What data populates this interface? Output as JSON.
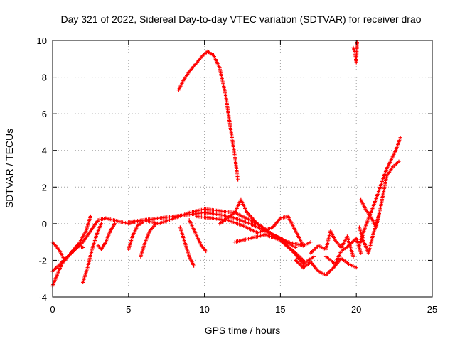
{
  "chart_data": {
    "type": "scatter",
    "title": "Day 321 of 2022, Sidereal Day-to-day VTEC variation (SDTVAR) for receiver drao",
    "xlabel": "GPS time / hours",
    "ylabel": "SDTVAR / TECUs",
    "xlim": [
      0,
      25
    ],
    "ylim": [
      -4,
      10
    ],
    "xticks": [
      "0",
      "5",
      "10",
      "15",
      "20",
      "25"
    ],
    "yticks": [
      "-4",
      "-2",
      "0",
      "2",
      "4",
      "6",
      "8",
      "10"
    ],
    "grid": true,
    "marker": "plus",
    "color": "#ff0000",
    "series": [
      {
        "name": "arc-early-1",
        "x": [
          0.0,
          0.3,
          0.6,
          1.0,
          1.4,
          1.8,
          2.2,
          2.5
        ],
        "y": [
          -3.4,
          -2.8,
          -2.2,
          -1.8,
          -1.4,
          -1.0,
          -0.4,
          0.4
        ]
      },
      {
        "name": "arc-early-2",
        "x": [
          0.0,
          0.4,
          0.8,
          1.2,
          1.6,
          2.0
        ],
        "y": [
          -1.0,
          -1.4,
          -2.0,
          -1.6,
          -1.2,
          -1.3
        ]
      },
      {
        "name": "arc-early-3",
        "x": [
          0.0,
          0.5,
          1.0,
          1.5,
          2.0,
          2.5,
          3.0,
          3.5,
          4.0,
          4.5,
          5.0,
          5.5,
          6.0,
          6.5,
          7.0
        ],
        "y": [
          -2.6,
          -2.2,
          -1.8,
          -1.4,
          -1.0,
          -0.4,
          0.2,
          0.3,
          0.2,
          0.1,
          0.0,
          0.1,
          0.2,
          0.1,
          0.0
        ]
      },
      {
        "name": "arc-dip-2h",
        "x": [
          2.0,
          2.3,
          2.6,
          2.9,
          3.2
        ],
        "y": [
          -3.2,
          -2.4,
          -1.4,
          -0.6,
          0.0
        ]
      },
      {
        "name": "arc-dip-3h",
        "x": [
          3.0,
          3.2,
          3.5,
          3.8,
          4.1
        ],
        "y": [
          -1.2,
          -1.4,
          -1.0,
          -0.4,
          0.0
        ]
      },
      {
        "name": "arc-dip-5h",
        "x": [
          5.0,
          5.3,
          5.6,
          6.0
        ],
        "y": [
          -1.4,
          -0.6,
          -0.1,
          0.1
        ]
      },
      {
        "name": "arc-dip-6h",
        "x": [
          5.8,
          6.1,
          6.4,
          6.8
        ],
        "y": [
          -1.8,
          -1.0,
          -0.4,
          0.0
        ]
      },
      {
        "name": "arc-dip-8h",
        "x": [
          8.4,
          8.7,
          9.0,
          9.3
        ],
        "y": [
          -0.2,
          -1.0,
          -1.8,
          -2.3
        ]
      },
      {
        "name": "arc-dip-9h",
        "x": [
          9.0,
          9.4,
          9.8,
          10.1
        ],
        "y": [
          0.2,
          -0.5,
          -1.2,
          -1.5
        ]
      },
      {
        "name": "arc-mid-1",
        "x": [
          5.0,
          6.0,
          7.0,
          8.0,
          9.0,
          10.0,
          11.0,
          12.0,
          13.0,
          14.0,
          15.0,
          16.0
        ],
        "y": [
          0.1,
          0.2,
          0.3,
          0.4,
          0.5,
          0.6,
          0.5,
          0.3,
          0.0,
          -0.4,
          -0.8,
          -1.3
        ]
      },
      {
        "name": "arc-mid-2",
        "x": [
          7.0,
          8.0,
          9.0,
          10.0,
          11.0,
          12.0,
          13.0,
          14.0,
          15.0,
          16.0,
          16.5
        ],
        "y": [
          0.0,
          0.3,
          0.6,
          0.8,
          0.7,
          0.6,
          0.2,
          -0.3,
          -0.9,
          -1.6,
          -2.0
        ]
      },
      {
        "name": "arc-mid-3",
        "x": [
          9.5,
          10.5,
          11.5,
          12.5,
          13.5,
          14.5,
          15.0,
          15.5,
          16.0,
          16.5
        ],
        "y": [
          0.4,
          0.3,
          0.2,
          -0.1,
          -0.5,
          -0.2,
          0.3,
          0.4,
          -0.4,
          -1.2
        ]
      },
      {
        "name": "arc-mid-4",
        "x": [
          11.0,
          12.0,
          12.4,
          12.8,
          13.5,
          14.5,
          15.5,
          16.5,
          17.0
        ],
        "y": [
          0.0,
          0.6,
          1.3,
          0.6,
          0.0,
          -0.6,
          -1.0,
          -1.2,
          -1.0
        ]
      },
      {
        "name": "arc-mid-5",
        "x": [
          12.0,
          13.0,
          14.0,
          15.0,
          15.8,
          16.5,
          17.2
        ],
        "y": [
          -1.0,
          -0.8,
          -0.6,
          -0.9,
          -1.5,
          -2.2,
          -1.8
        ]
      },
      {
        "name": "arc-late-1",
        "x": [
          16.0,
          16.5,
          17.0,
          17.5,
          18.0,
          18.5,
          19.0,
          19.5,
          20.0
        ],
        "y": [
          -2.0,
          -2.4,
          -2.1,
          -2.6,
          -2.8,
          -2.4,
          -1.9,
          -2.2,
          -2.4
        ]
      },
      {
        "name": "arc-late-2",
        "x": [
          17.0,
          17.5,
          18.0,
          18.3,
          18.6,
          19.0,
          19.4,
          19.8
        ],
        "y": [
          -1.6,
          -1.2,
          -1.4,
          -0.4,
          -0.9,
          -1.3,
          -0.7,
          -1.8
        ]
      },
      {
        "name": "arc-late-3",
        "x": [
          18.0,
          18.6,
          19.0,
          19.5,
          20.0,
          20.3
        ],
        "y": [
          -1.8,
          -2.2,
          -1.5,
          -1.2,
          -0.8,
          -1.6
        ]
      },
      {
        "name": "arc-rise",
        "x": [
          20.2,
          20.5,
          20.8,
          21.1,
          21.4,
          21.7,
          22.0,
          22.3,
          22.6,
          22.9
        ],
        "y": [
          -1.2,
          -0.4,
          0.3,
          0.9,
          1.6,
          2.3,
          3.0,
          3.5,
          4.0,
          4.7
        ]
      },
      {
        "name": "arc-rise-2",
        "x": [
          20.3,
          20.6,
          21.0,
          21.3,
          21.6,
          22.0,
          22.4,
          22.8
        ],
        "y": [
          1.3,
          0.8,
          0.3,
          -0.2,
          0.9,
          2.6,
          3.1,
          3.4
        ]
      },
      {
        "name": "arc-rise-3",
        "x": [
          20.2,
          20.5,
          20.8,
          21.1,
          21.5
        ],
        "y": [
          -0.2,
          -1.0,
          -1.6,
          -0.6,
          0.5
        ]
      },
      {
        "name": "arc-high-peak",
        "x": [
          8.3,
          8.6,
          9.0,
          9.4,
          9.8,
          10.2,
          10.6,
          11.0,
          11.4,
          11.7,
          12.0,
          12.2
        ],
        "y": [
          7.3,
          7.8,
          8.3,
          8.7,
          9.1,
          9.4,
          9.2,
          8.5,
          7.0,
          5.3,
          3.7,
          2.4
        ]
      },
      {
        "name": "arc-high-20h",
        "x": [
          19.8,
          19.9,
          20.0,
          20.05
        ],
        "y": [
          9.6,
          9.4,
          8.8,
          9.9
        ]
      }
    ]
  }
}
